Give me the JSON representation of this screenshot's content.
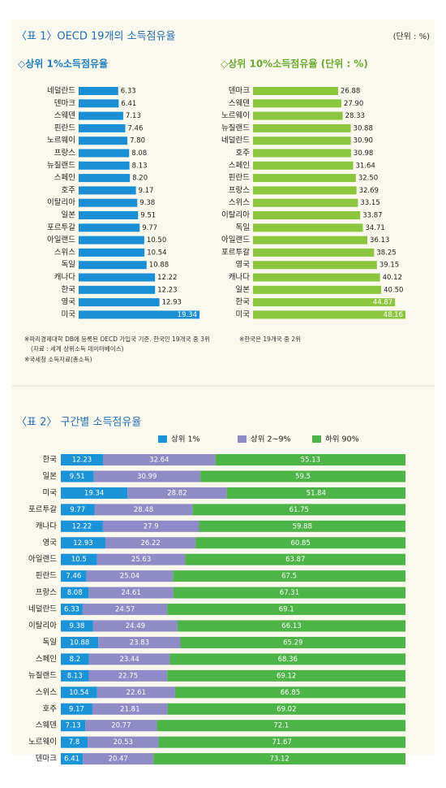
{
  "table1": {
    "title": "〈표 1〉OECD 19개의 소득점유율",
    "unit": "(단위 : %)"
  },
  "notes_left": [
    "※파리경제대학 DB에 등록된 OECD 가입국 기준. 한국인 19개국 중 3위",
    "(자료 : 세계 상위소득 데이터베이스)",
    "※국세청 소득자료(총소득)"
  ],
  "notes_right": [
    "※한국은 19개국 중 2위"
  ],
  "chart_data": [
    {
      "type": "hbar",
      "title": "◇상위 1%소득점유율",
      "color": "#1b8fd6",
      "categories": [
        "네덜란드",
        "덴마크",
        "스웨덴",
        "핀란드",
        "노르웨이",
        "프랑스",
        "뉴질랜드",
        "스페인",
        "호주",
        "이탈리아",
        "일본",
        "포르투갈",
        "아일랜드",
        "스위스",
        "독일",
        "캐나다",
        "한국",
        "영국",
        "미국"
      ],
      "values": [
        6.33,
        6.41,
        7.13,
        7.46,
        7.8,
        8.08,
        8.13,
        8.2,
        9.17,
        9.38,
        9.51,
        9.77,
        10.5,
        10.54,
        10.88,
        12.22,
        12.23,
        12.93,
        19.34
      ],
      "value_labels": [
        "6.33",
        "6.41",
        "7.13",
        "7.46",
        "7.80",
        "8.08",
        "8.13",
        "8.20",
        "9.17",
        "9.38",
        "9.51",
        "9.77",
        "10.50",
        "10.54",
        "10.88",
        "12.22",
        "12.23",
        "12.93",
        "19.34"
      ]
    },
    {
      "type": "hbar",
      "title": "◇상위 10%소득점유율 (단위 : %)",
      "color": "#8cc63f",
      "categories": [
        "덴마크",
        "스웨덴",
        "노르웨이",
        "뉴질랜드",
        "네덜란드",
        "호주",
        "스페인",
        "핀란드",
        "프랑스",
        "스위스",
        "이탈리아",
        "독일",
        "아일랜드",
        "포르투갈",
        "영국",
        "캐나다",
        "일본",
        "한국",
        "미국"
      ],
      "values": [
        26.88,
        27.9,
        28.33,
        30.88,
        30.9,
        30.98,
        31.64,
        32.5,
        32.69,
        33.15,
        33.87,
        34.71,
        36.13,
        38.25,
        39.15,
        40.12,
        40.5,
        44.87,
        48.16
      ],
      "value_labels": [
        "26.88",
        "27.90",
        "28.33",
        "30.88",
        "30.90",
        "30.98",
        "31.64",
        "32.50",
        "32.69",
        "33.15",
        "33.87",
        "34.71",
        "36.13",
        "38.25",
        "39.15",
        "40.12",
        "40.50",
        "44.87",
        "48.16"
      ]
    },
    {
      "type": "stacked_bar",
      "title": "〈표 2〉 구간별 소득점유율",
      "categories": [
        "한국",
        "일본",
        "미국",
        "포르투갈",
        "캐나다",
        "영국",
        "아일랜드",
        "핀란드",
        "프랑스",
        "네덜란드",
        "이탈리아",
        "독일",
        "스페인",
        "뉴질랜드",
        "스위스",
        "호주",
        "스웨덴",
        "노르웨이",
        "덴마크"
      ],
      "series": [
        {
          "name": "상위 1%",
          "color": "#1b93d8",
          "values": [
            12.23,
            9.51,
            19.34,
            9.77,
            12.22,
            12.93,
            10.5,
            7.46,
            8.08,
            6.33,
            9.38,
            10.88,
            8.2,
            8.13,
            10.54,
            9.17,
            7.13,
            7.8,
            6.41
          ]
        },
        {
          "name": "상위 2~9%",
          "color": "#8e8bc6",
          "values": [
            32.64,
            30.99,
            28.82,
            28.48,
            27.9,
            26.22,
            25.63,
            25.04,
            24.61,
            24.57,
            24.49,
            23.83,
            23.44,
            22.75,
            22.61,
            21.81,
            20.77,
            20.53,
            20.47
          ]
        },
        {
          "name": "하위 90%",
          "color": "#4db447",
          "values": [
            55.13,
            59.5,
            51.84,
            61.75,
            59.88,
            60.85,
            63.87,
            67.5,
            67.31,
            69.1,
            66.13,
            65.29,
            68.36,
            69.12,
            66.85,
            69.02,
            72.1,
            71.67,
            73.12
          ]
        }
      ]
    }
  ]
}
